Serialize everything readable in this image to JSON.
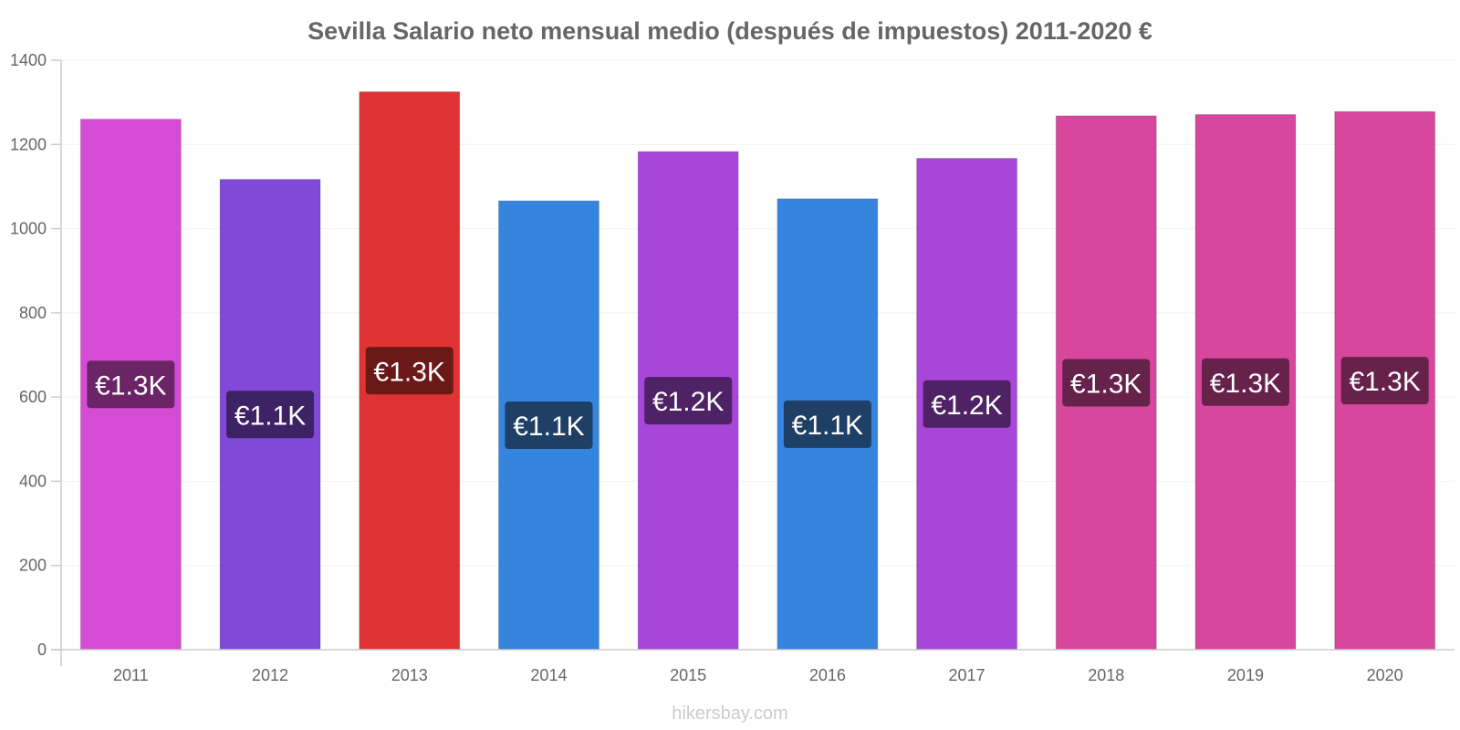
{
  "chart_data": {
    "type": "bar",
    "title": "Sevilla Salario neto mensual medio (después de impuestos) 2011-2020 €",
    "categories": [
      "2011",
      "2012",
      "2013",
      "2014",
      "2015",
      "2016",
      "2017",
      "2018",
      "2019",
      "2020"
    ],
    "values": [
      1260,
      1117,
      1325,
      1066,
      1183,
      1071,
      1167,
      1268,
      1271,
      1278
    ],
    "data_labels": [
      "€1.3K",
      "€1.1K",
      "€1.3K",
      "€1.1K",
      "€1.2K",
      "€1.1K",
      "€1.2K",
      "€1.3K",
      "€1.3K",
      "€1.3K"
    ],
    "colors": [
      "#d64bd4",
      "#8249d9",
      "#e03333",
      "#3584de",
      "#a746d8",
      "#3584de",
      "#a746d8",
      "#d6479d",
      "#d6479d",
      "#d6479d"
    ],
    "label_colors": [
      "#6b2466",
      "#3e2266",
      "#6b1818",
      "#1e3f66",
      "#4f2266",
      "#1e3f66",
      "#4f2266",
      "#66224b",
      "#66224b",
      "#66224b"
    ],
    "ylim": [
      0,
      1400
    ],
    "yticks": [
      0,
      200,
      400,
      600,
      800,
      1000,
      1200,
      1400
    ],
    "xlabel": "",
    "ylabel": "",
    "grid": true,
    "legend": "none"
  },
  "credit": "hikersbay.com"
}
